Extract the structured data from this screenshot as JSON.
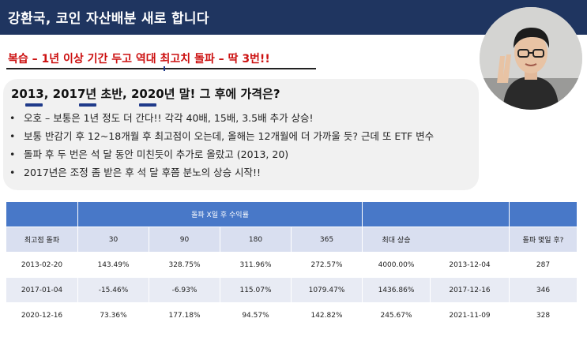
{
  "header": {
    "title": "강환국, 코인 자산배분 새로 합니다"
  },
  "subtitle": "복습 – 1년 이상 기간 두고 역대 최고치 돌파 – 딱 3번!!",
  "question": "2013, 2017년 초반, 2020년 말! 그 후에 가격은?",
  "bullets": [
    "오호 – 보통은 1년 정도 더 간다!! 각각 40배, 15배, 3.5배 추가 상승!",
    "보통 반감기 후 12~18개월 후 최고점이 오는데, 올해는 12개월에 더 가까울 듯? 근데 또 ETF 변수",
    "돌파 후 두 번은 석 달 동안 미친듯이 추가로 올랐고 (2013, 20)",
    "2017년은 조정 좀 받은 후 석 달 후쯤 분노의 상승 시작!!"
  ],
  "bullet_marker": "•",
  "table": {
    "group_header": "돌파 X일 후 수익률",
    "columns": [
      "최고점 돌파",
      "30",
      "90",
      "180",
      "365",
      "최대 상승",
      "",
      "돌파 몇일 후?"
    ],
    "rows": [
      [
        "2013-02-20",
        "143.49%",
        "328.75%",
        "311.96%",
        "272.57%",
        "4000.00%",
        "2013-12-04",
        "287"
      ],
      [
        "2017-01-04",
        "-15.46%",
        "-6.93%",
        "115.07%",
        "1079.47%",
        "1436.86%",
        "2017-12-16",
        "346"
      ],
      [
        "2020-12-16",
        "73.36%",
        "177.18%",
        "94.57%",
        "142.82%",
        "245.67%",
        "2021-11-09",
        "328"
      ]
    ]
  },
  "colors": {
    "header_bg": "#1f3560",
    "subtitle": "#cc1010",
    "table_header": "#4878c8",
    "table_subheader": "#d9dff0",
    "table_row_alt": "#e8ebf4"
  },
  "webcam": {
    "description_icon": "presenter-video-feed"
  }
}
